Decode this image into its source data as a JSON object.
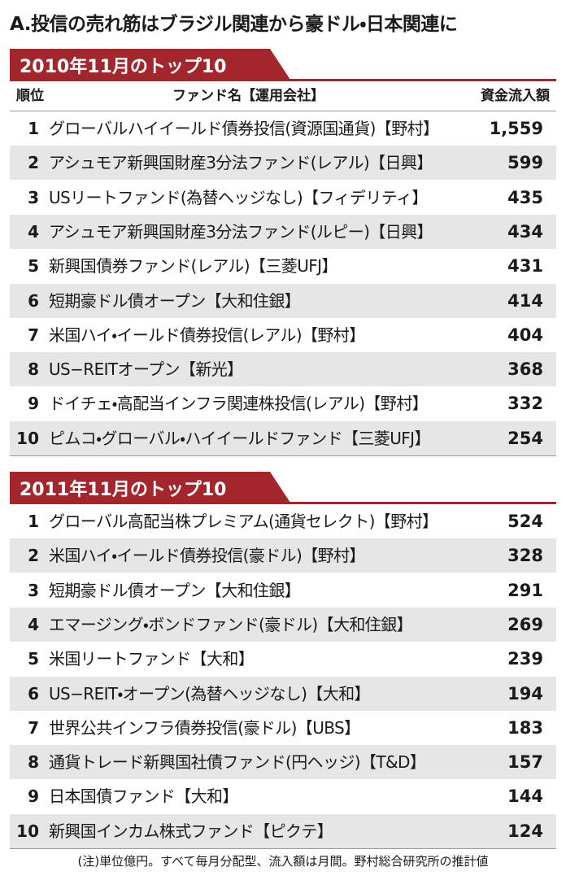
{
  "title": "A.投信の売れ筋はブラジル関連から豪ドル・日本関連に",
  "sections": [
    {
      "title": "2010年11月のトップ10",
      "header": [
        "順位",
        "ファンド名【運用会社】",
        "資金流入額"
      ],
      "rows": [
        [
          "1",
          "グローバルハイイールド債券投信(資源国通貨)【野村】",
          "1,559"
        ],
        [
          "2",
          "アシュモア新興国財産3分法ファンド(レアル)【日興】",
          "599"
        ],
        [
          "3",
          "USリートファンド(為替ヘッジなし)【フィデリティ】",
          "435"
        ],
        [
          "4",
          "アシュモア新興国財産3分法ファンド(ルピー)【日興】",
          "434"
        ],
        [
          "5",
          "新興国債券ファンド(レアル)【三菱UFJ】",
          "431"
        ],
        [
          "6",
          "短期豪ドル債オープン【大和住銀】",
          "414"
        ],
        [
          "7",
          "米国ハイ・イールド債券投信(レアル)【野村】",
          "404"
        ],
        [
          "8",
          "US−REITオープン【新光】",
          "368"
        ],
        [
          "9",
          "ドイチェ・高配当インフラ関連株投信(レアル)【野村】",
          "332"
        ],
        [
          "10",
          "ピムコ・グローバル・ハイイールドファンド【三菱UFJ】",
          "254"
        ]
      ]
    },
    {
      "title": "2011年11月のトップ10",
      "rows": [
        [
          "1",
          "グローバル高配当株プレミアム(通貨セレクト)【野村】",
          "524"
        ],
        [
          "2",
          "米国ハイ・イールド債券投信(豪ドル)【野村】",
          "328"
        ],
        [
          "3",
          "短期豪ドル債オープン【大和住銀】",
          "291"
        ],
        [
          "4",
          "エマージング・ボンドファンド(豪ドル)【大和住銀】",
          "269"
        ],
        [
          "5",
          "米国リートファンド【大和】",
          "239"
        ],
        [
          "6",
          "US−REIT・オープン(為替ヘッジなし)【大和】",
          "194"
        ],
        [
          "7",
          "世界公共インフラ債券投信(豪ドル)【UBS】",
          "183"
        ],
        [
          "8",
          "通貨トレード新興国社債ファンド(円ヘッジ)【T&D】",
          "157"
        ],
        [
          "9",
          "日本国債ファンド【大和】",
          "144"
        ],
        [
          "10",
          "新興国インカム株式ファンド【ピクテ】",
          "124"
        ]
      ]
    }
  ],
  "note": "(注)単位億円。すべて毎月分配型、流入額は月間。野村総合研究所の推計値"
}
